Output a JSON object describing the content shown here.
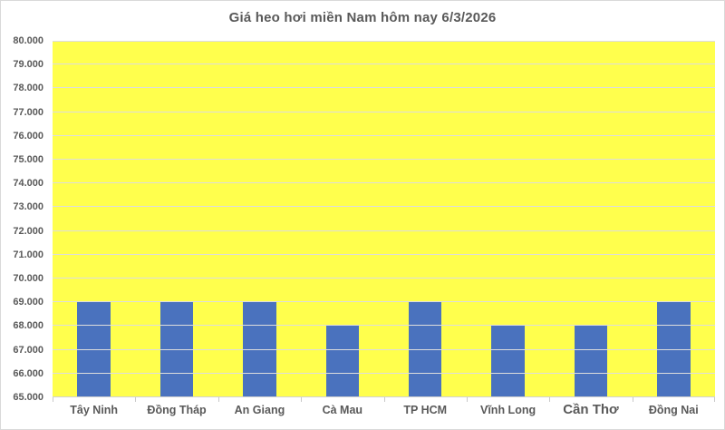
{
  "chart_data": {
    "type": "bar",
    "title": "Giá heo hơi miền Nam hôm nay 6/3/2026",
    "categories": [
      "Tây Ninh",
      "Đồng Tháp",
      "An Giang",
      "Cà Mau",
      "TP HCM",
      "Vĩnh Long",
      "Cần Thơ",
      "Đồng Nai"
    ],
    "values": [
      69000,
      69000,
      69000,
      68000,
      69000,
      68000,
      68000,
      69000
    ],
    "xlabel": "",
    "ylabel": "",
    "ylim": [
      65000,
      80000
    ],
    "ytick_step": 1000,
    "ytick_labels": [
      "80.000",
      "79.000",
      "78.000",
      "77.000",
      "76.000",
      "75.000",
      "74.000",
      "73.000",
      "72.000",
      "71.000",
      "70.000",
      "69.000",
      "68.000",
      "67.000",
      "66.000",
      "65.000"
    ],
    "grid": true,
    "legend": "none",
    "colors": {
      "bar_fill": "#4a72be",
      "plot_background": "#ffff4d",
      "gridline": "#dddddd",
      "text": "#595959",
      "chart_border": "#d9d9d9",
      "chart_background": "#ffffff"
    }
  }
}
